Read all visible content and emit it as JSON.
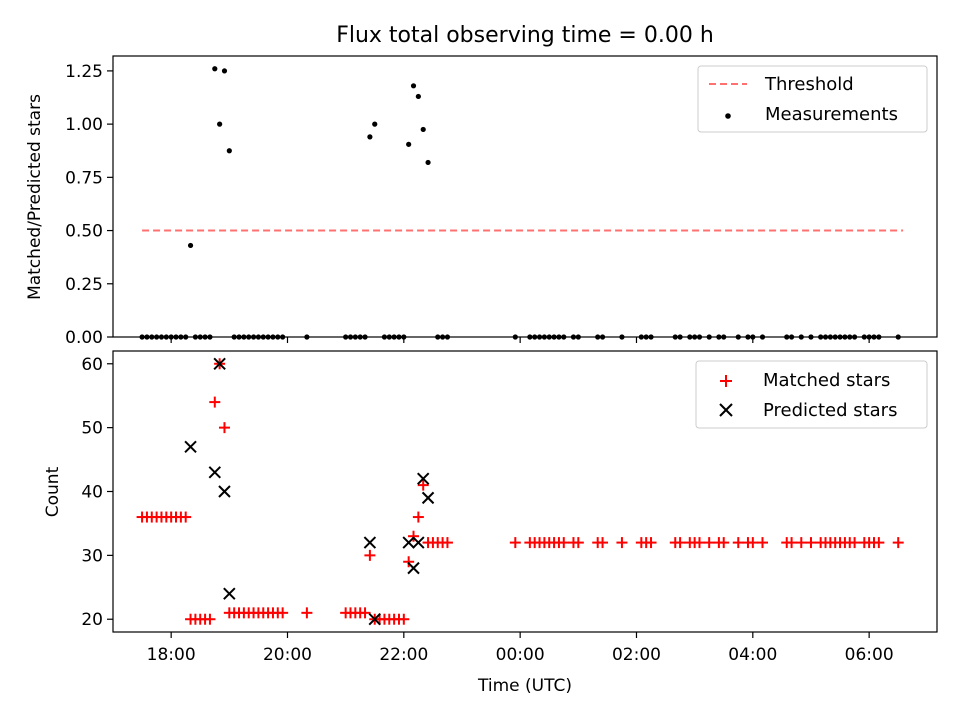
{
  "chart_data": [
    {
      "type": "scatter",
      "title": "Flux total observing time = 0.00 h",
      "ylabel": "Matched/Predicted stars",
      "xlabel": "",
      "xlim": [
        "17:00",
        "07:10"
      ],
      "ylim": [
        0,
        1.32
      ],
      "yticks": [
        0,
        0.25,
        0.5,
        0.75,
        1.0,
        1.25
      ],
      "ytick_labels": [
        "0.00",
        "0.25",
        "0.50",
        "0.75",
        "1.00",
        "1.25"
      ],
      "legend_position": "upper-right",
      "series": [
        {
          "name": "Threshold",
          "kind": "dashed-line",
          "color": "#ff7070",
          "points": [
            {
              "x": "17:30",
              "y": 0.5
            },
            {
              "x": "06:35",
              "y": 0.5
            }
          ]
        },
        {
          "name": "Measurements",
          "kind": "dot",
          "color": "#000000",
          "points": [
            {
              "x": "17:30",
              "y": 0
            },
            {
              "x": "17:35",
              "y": 0
            },
            {
              "x": "17:40",
              "y": 0
            },
            {
              "x": "17:45",
              "y": 0
            },
            {
              "x": "17:50",
              "y": 0
            },
            {
              "x": "17:55",
              "y": 0
            },
            {
              "x": "18:00",
              "y": 0
            },
            {
              "x": "18:05",
              "y": 0
            },
            {
              "x": "18:10",
              "y": 0
            },
            {
              "x": "18:15",
              "y": 0
            },
            {
              "x": "18:20",
              "y": 0.43
            },
            {
              "x": "18:25",
              "y": 0
            },
            {
              "x": "18:30",
              "y": 0
            },
            {
              "x": "18:35",
              "y": 0
            },
            {
              "x": "18:40",
              "y": 0
            },
            {
              "x": "18:45",
              "y": 1.26
            },
            {
              "x": "18:50",
              "y": 1.0
            },
            {
              "x": "18:55",
              "y": 1.25
            },
            {
              "x": "19:00",
              "y": 0.875
            },
            {
              "x": "19:05",
              "y": 0
            },
            {
              "x": "19:10",
              "y": 0
            },
            {
              "x": "19:15",
              "y": 0
            },
            {
              "x": "19:20",
              "y": 0
            },
            {
              "x": "19:25",
              "y": 0
            },
            {
              "x": "19:30",
              "y": 0
            },
            {
              "x": "19:35",
              "y": 0
            },
            {
              "x": "19:40",
              "y": 0
            },
            {
              "x": "19:45",
              "y": 0
            },
            {
              "x": "19:50",
              "y": 0
            },
            {
              "x": "19:55",
              "y": 0
            },
            {
              "x": "20:20",
              "y": 0
            },
            {
              "x": "21:00",
              "y": 0
            },
            {
              "x": "21:05",
              "y": 0
            },
            {
              "x": "21:10",
              "y": 0
            },
            {
              "x": "21:15",
              "y": 0
            },
            {
              "x": "21:20",
              "y": 0
            },
            {
              "x": "21:25",
              "y": 0.94
            },
            {
              "x": "21:30",
              "y": 1.0
            },
            {
              "x": "21:40",
              "y": 0
            },
            {
              "x": "21:45",
              "y": 0
            },
            {
              "x": "21:50",
              "y": 0
            },
            {
              "x": "21:55",
              "y": 0
            },
            {
              "x": "22:00",
              "y": 0
            },
            {
              "x": "22:05",
              "y": 0.905
            },
            {
              "x": "22:10",
              "y": 1.18
            },
            {
              "x": "22:15",
              "y": 1.13
            },
            {
              "x": "22:20",
              "y": 0.975
            },
            {
              "x": "22:25",
              "y": 0.82
            },
            {
              "x": "22:35",
              "y": 0
            },
            {
              "x": "22:40",
              "y": 0
            },
            {
              "x": "22:45",
              "y": 0
            },
            {
              "x": "23:55",
              "y": 0
            },
            {
              "x": "00:10",
              "y": 0
            },
            {
              "x": "00:15",
              "y": 0
            },
            {
              "x": "00:20",
              "y": 0
            },
            {
              "x": "00:25",
              "y": 0
            },
            {
              "x": "00:30",
              "y": 0
            },
            {
              "x": "00:35",
              "y": 0
            },
            {
              "x": "00:40",
              "y": 0
            },
            {
              "x": "00:45",
              "y": 0
            },
            {
              "x": "00:55",
              "y": 0
            },
            {
              "x": "01:00",
              "y": 0
            },
            {
              "x": "01:20",
              "y": 0
            },
            {
              "x": "01:25",
              "y": 0
            },
            {
              "x": "01:45",
              "y": 0
            },
            {
              "x": "02:05",
              "y": 0
            },
            {
              "x": "02:10",
              "y": 0
            },
            {
              "x": "02:15",
              "y": 0
            },
            {
              "x": "02:40",
              "y": 0
            },
            {
              "x": "02:45",
              "y": 0
            },
            {
              "x": "02:55",
              "y": 0
            },
            {
              "x": "03:00",
              "y": 0
            },
            {
              "x": "03:05",
              "y": 0
            },
            {
              "x": "03:15",
              "y": 0
            },
            {
              "x": "03:25",
              "y": 0
            },
            {
              "x": "03:30",
              "y": 0
            },
            {
              "x": "03:45",
              "y": 0
            },
            {
              "x": "03:55",
              "y": 0
            },
            {
              "x": "04:00",
              "y": 0
            },
            {
              "x": "04:10",
              "y": 0
            },
            {
              "x": "04:35",
              "y": 0
            },
            {
              "x": "04:40",
              "y": 0
            },
            {
              "x": "04:50",
              "y": 0
            },
            {
              "x": "05:00",
              "y": 0
            },
            {
              "x": "05:10",
              "y": 0
            },
            {
              "x": "05:15",
              "y": 0
            },
            {
              "x": "05:20",
              "y": 0
            },
            {
              "x": "05:25",
              "y": 0
            },
            {
              "x": "05:30",
              "y": 0
            },
            {
              "x": "05:35",
              "y": 0
            },
            {
              "x": "05:40",
              "y": 0
            },
            {
              "x": "05:45",
              "y": 0
            },
            {
              "x": "05:55",
              "y": 0
            },
            {
              "x": "06:00",
              "y": 0
            },
            {
              "x": "06:05",
              "y": 0
            },
            {
              "x": "06:10",
              "y": 0
            },
            {
              "x": "06:30",
              "y": 0
            }
          ]
        }
      ]
    },
    {
      "type": "scatter",
      "title": "",
      "ylabel": "Count",
      "xlabel": "Time (UTC)",
      "xlim": [
        "17:00",
        "07:10"
      ],
      "ylim": [
        18,
        62
      ],
      "xticks": [
        "18:00",
        "20:00",
        "22:00",
        "00:00",
        "02:00",
        "04:00",
        "06:00"
      ],
      "yticks": [
        20,
        30,
        40,
        50,
        60
      ],
      "ytick_labels": [
        "20",
        "30",
        "40",
        "50",
        "60"
      ],
      "legend_position": "upper-right",
      "series": [
        {
          "name": "Matched stars",
          "kind": "plus",
          "color": "#ff0000",
          "points": [
            {
              "x": "17:30",
              "y": 36
            },
            {
              "x": "17:35",
              "y": 36
            },
            {
              "x": "17:40",
              "y": 36
            },
            {
              "x": "17:45",
              "y": 36
            },
            {
              "x": "17:50",
              "y": 36
            },
            {
              "x": "17:55",
              "y": 36
            },
            {
              "x": "18:00",
              "y": 36
            },
            {
              "x": "18:05",
              "y": 36
            },
            {
              "x": "18:10",
              "y": 36
            },
            {
              "x": "18:15",
              "y": 36
            },
            {
              "x": "18:20",
              "y": 20
            },
            {
              "x": "18:25",
              "y": 20
            },
            {
              "x": "18:30",
              "y": 20
            },
            {
              "x": "18:35",
              "y": 20
            },
            {
              "x": "18:40",
              "y": 20
            },
            {
              "x": "18:45",
              "y": 54
            },
            {
              "x": "18:50",
              "y": 60
            },
            {
              "x": "18:55",
              "y": 50
            },
            {
              "x": "19:00",
              "y": 21
            },
            {
              "x": "19:05",
              "y": 21
            },
            {
              "x": "19:10",
              "y": 21
            },
            {
              "x": "19:15",
              "y": 21
            },
            {
              "x": "19:20",
              "y": 21
            },
            {
              "x": "19:25",
              "y": 21
            },
            {
              "x": "19:30",
              "y": 21
            },
            {
              "x": "19:35",
              "y": 21
            },
            {
              "x": "19:40",
              "y": 21
            },
            {
              "x": "19:45",
              "y": 21
            },
            {
              "x": "19:50",
              "y": 21
            },
            {
              "x": "19:55",
              "y": 21
            },
            {
              "x": "20:20",
              "y": 21
            },
            {
              "x": "21:00",
              "y": 21
            },
            {
              "x": "21:05",
              "y": 21
            },
            {
              "x": "21:10",
              "y": 21
            },
            {
              "x": "21:15",
              "y": 21
            },
            {
              "x": "21:20",
              "y": 21
            },
            {
              "x": "21:25",
              "y": 30
            },
            {
              "x": "21:30",
              "y": 20
            },
            {
              "x": "21:35",
              "y": 20
            },
            {
              "x": "21:40",
              "y": 20
            },
            {
              "x": "21:45",
              "y": 20
            },
            {
              "x": "21:50",
              "y": 20
            },
            {
              "x": "21:55",
              "y": 20
            },
            {
              "x": "22:00",
              "y": 20
            },
            {
              "x": "22:05",
              "y": 29
            },
            {
              "x": "22:10",
              "y": 33
            },
            {
              "x": "22:15",
              "y": 36
            },
            {
              "x": "22:20",
              "y": 41
            },
            {
              "x": "22:25",
              "y": 32
            },
            {
              "x": "22:30",
              "y": 32
            },
            {
              "x": "22:35",
              "y": 32
            },
            {
              "x": "22:40",
              "y": 32
            },
            {
              "x": "22:45",
              "y": 32
            },
            {
              "x": "23:55",
              "y": 32
            },
            {
              "x": "00:10",
              "y": 32
            },
            {
              "x": "00:15",
              "y": 32
            },
            {
              "x": "00:20",
              "y": 32
            },
            {
              "x": "00:25",
              "y": 32
            },
            {
              "x": "00:30",
              "y": 32
            },
            {
              "x": "00:35",
              "y": 32
            },
            {
              "x": "00:40",
              "y": 32
            },
            {
              "x": "00:45",
              "y": 32
            },
            {
              "x": "00:55",
              "y": 32
            },
            {
              "x": "01:00",
              "y": 32
            },
            {
              "x": "01:20",
              "y": 32
            },
            {
              "x": "01:25",
              "y": 32
            },
            {
              "x": "01:45",
              "y": 32
            },
            {
              "x": "02:05",
              "y": 32
            },
            {
              "x": "02:10",
              "y": 32
            },
            {
              "x": "02:15",
              "y": 32
            },
            {
              "x": "02:40",
              "y": 32
            },
            {
              "x": "02:45",
              "y": 32
            },
            {
              "x": "02:55",
              "y": 32
            },
            {
              "x": "03:00",
              "y": 32
            },
            {
              "x": "03:05",
              "y": 32
            },
            {
              "x": "03:15",
              "y": 32
            },
            {
              "x": "03:25",
              "y": 32
            },
            {
              "x": "03:30",
              "y": 32
            },
            {
              "x": "03:45",
              "y": 32
            },
            {
              "x": "03:55",
              "y": 32
            },
            {
              "x": "04:00",
              "y": 32
            },
            {
              "x": "04:10",
              "y": 32
            },
            {
              "x": "04:35",
              "y": 32
            },
            {
              "x": "04:40",
              "y": 32
            },
            {
              "x": "04:50",
              "y": 32
            },
            {
              "x": "05:00",
              "y": 32
            },
            {
              "x": "05:10",
              "y": 32
            },
            {
              "x": "05:15",
              "y": 32
            },
            {
              "x": "05:20",
              "y": 32
            },
            {
              "x": "05:25",
              "y": 32
            },
            {
              "x": "05:30",
              "y": 32
            },
            {
              "x": "05:35",
              "y": 32
            },
            {
              "x": "05:40",
              "y": 32
            },
            {
              "x": "05:45",
              "y": 32
            },
            {
              "x": "05:55",
              "y": 32
            },
            {
              "x": "06:00",
              "y": 32
            },
            {
              "x": "06:05",
              "y": 32
            },
            {
              "x": "06:10",
              "y": 32
            },
            {
              "x": "06:30",
              "y": 32
            }
          ]
        },
        {
          "name": "Predicted stars",
          "kind": "x",
          "color": "#000000",
          "points": [
            {
              "x": "18:20",
              "y": 47
            },
            {
              "x": "18:45",
              "y": 43
            },
            {
              "x": "18:50",
              "y": 60
            },
            {
              "x": "18:55",
              "y": 40
            },
            {
              "x": "19:00",
              "y": 24
            },
            {
              "x": "21:25",
              "y": 32
            },
            {
              "x": "21:30",
              "y": 20
            },
            {
              "x": "22:05",
              "y": 32
            },
            {
              "x": "22:10",
              "y": 28
            },
            {
              "x": "22:15",
              "y": 32
            },
            {
              "x": "22:20",
              "y": 42
            },
            {
              "x": "22:25",
              "y": 39
            }
          ]
        }
      ]
    }
  ]
}
